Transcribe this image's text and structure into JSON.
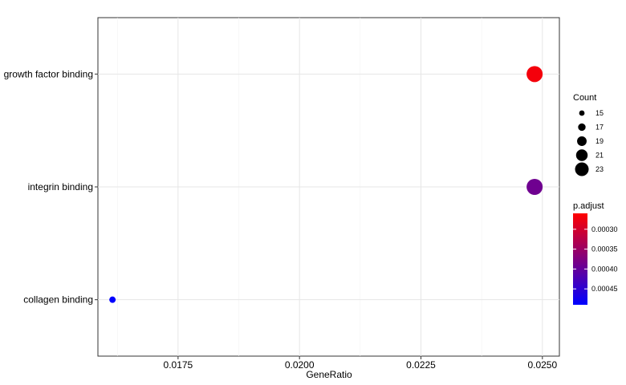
{
  "chart_data": {
    "type": "scatter",
    "title": "",
    "xlabel": "GeneRatio",
    "ylabel": "",
    "xlim": [
      0.01585,
      0.02535
    ],
    "x_ticks": [
      0.0175,
      0.02,
      0.0225,
      0.025
    ],
    "x_tick_labels": [
      "0.0175",
      "0.0200",
      "0.0225",
      "0.0250"
    ],
    "categories": [
      "growth factor binding",
      "integrin binding",
      "collagen binding"
    ],
    "points": [
      {
        "term": "growth factor binding",
        "x": 0.02484,
        "count": 23,
        "p_adjust": 0.00027
      },
      {
        "term": "integrin binding",
        "x": 0.02484,
        "count": 23,
        "p_adjust": 0.00039
      },
      {
        "term": "collagen binding",
        "x": 0.01615,
        "count": 15,
        "p_adjust": 0.00049
      }
    ],
    "grid": true,
    "legend_placement": "right",
    "size_legend": {
      "title": "Count",
      "values": [
        15,
        17,
        19,
        21,
        23
      ],
      "labels": [
        "15",
        "17",
        "19",
        "21",
        "23"
      ]
    },
    "color_legend": {
      "title": "p.adjust",
      "range": [
        0.00026,
        0.00049
      ],
      "ticks": [
        0.0003,
        0.00035,
        0.0004,
        0.00045
      ],
      "tick_labels": [
        "0.00030",
        "0.00035",
        "0.00040",
        "0.00045"
      ],
      "low_color": "#ff0000",
      "high_color": "#0000ff"
    }
  }
}
